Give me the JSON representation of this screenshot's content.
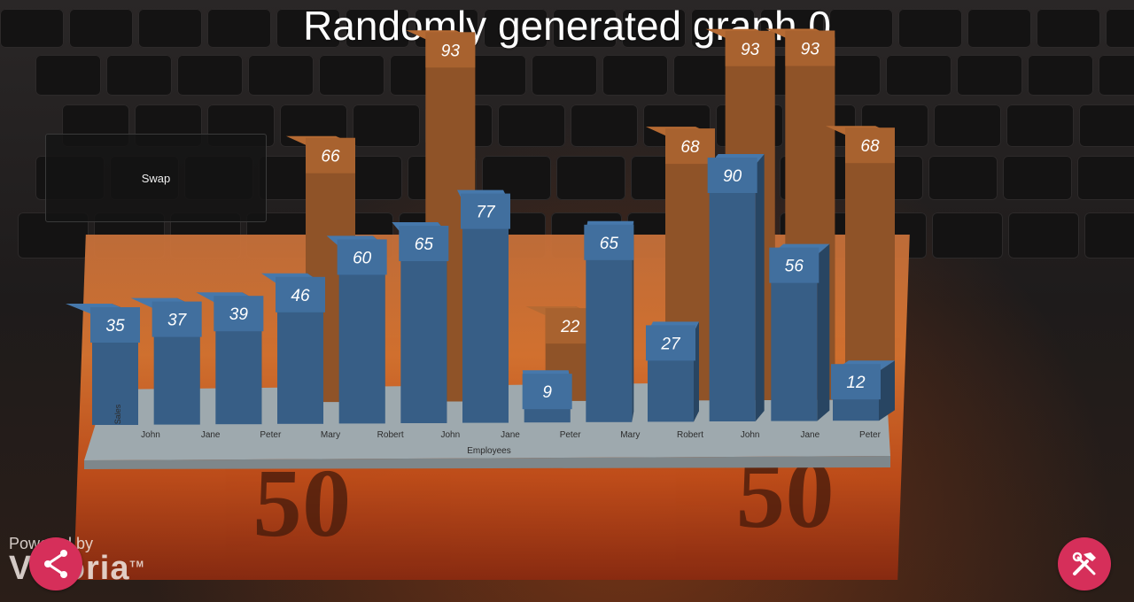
{
  "title": "Randomly generated graph 0",
  "swap_label": "Swap",
  "branding": {
    "powered_by": "Powered by",
    "name": "Vuforia",
    "tm": "TM"
  },
  "icons": {
    "share": "share-icon",
    "tools": "hammer-wrench-icon"
  },
  "colors": {
    "front_series": "#416f9e",
    "back_series": "#a8622f",
    "accent": "#d62f5a",
    "base": "#9ea9ae"
  },
  "chart_data": {
    "type": "bar",
    "title": "Randomly generated graph 0",
    "xlabel": "Employees",
    "ylabel": "Sales",
    "categories": [
      "John",
      "Jane",
      "Peter",
      "Mary",
      "Robert",
      "John",
      "Jane",
      "Peter",
      "Mary",
      "Robert",
      "John",
      "Jane",
      "Peter"
    ],
    "series": [
      {
        "values": [
          35,
          37,
          39,
          46,
          60,
          65,
          77,
          9,
          65,
          27,
          90,
          56,
          12
        ]
      },
      {
        "values": [
          null,
          null,
          null,
          66,
          null,
          93,
          null,
          22,
          null,
          68,
          93,
          93,
          68
        ]
      }
    ]
  }
}
